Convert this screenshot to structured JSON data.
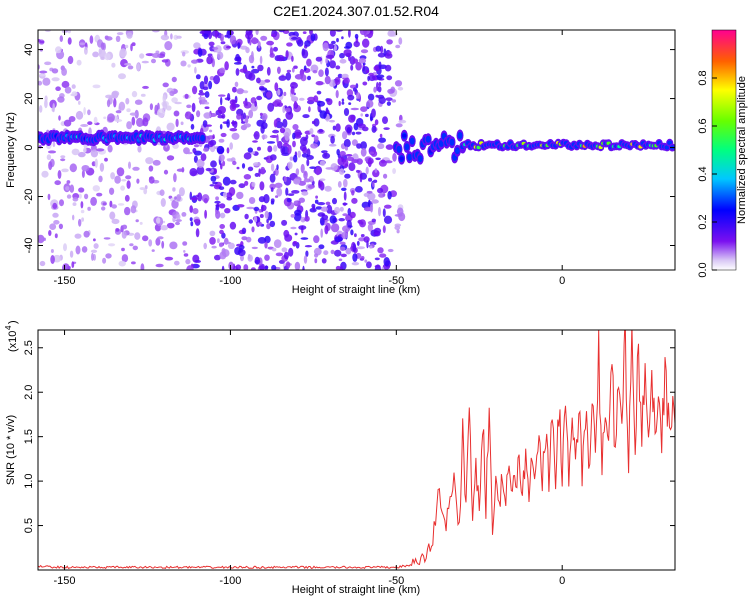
{
  "chart_data": [
    {
      "type": "heatmap",
      "title": "C2E1.2024.307.01.52.R04",
      "xlabel": "Height of straight line (km)",
      "ylabel": "Frequency (Hz)",
      "xlim": [
        -158,
        34
      ],
      "ylim": [
        -50,
        48
      ],
      "x_ticks": [
        -150,
        -100,
        -50,
        0
      ],
      "y_ticks": [
        40,
        20,
        0,
        -20,
        -40
      ],
      "colorbar": {
        "label": "Normalized spectral amplitude",
        "range": [
          0.0,
          1.0
        ],
        "ticks": [
          0.0,
          0.2,
          0.4,
          0.6,
          0.8
        ],
        "tick_labels": [
          "0.0",
          "0.2",
          "0.4",
          "0.6",
          "0.8"
        ]
      },
      "band": {
        "description_free": true,
        "segments": [
          {
            "x": [
              -158,
              -108
            ],
            "freq": 4,
            "peak": 0.45
          },
          {
            "x": [
              -50,
              -30
            ],
            "freq": 0,
            "peak": 0.35
          },
          {
            "x": [
              -30,
              34
            ],
            "freq": 1,
            "peak": 0.85
          }
        ]
      },
      "noise_region_x": [
        -158,
        -48
      ]
    },
    {
      "type": "line",
      "xlabel": "Height of straight line (km)",
      "ylabel": "SNR (10 * v/v)",
      "y_multiplier": "(x10",
      "y_multiplier_exp": "4",
      "xlim": [
        -158,
        34
      ],
      "ylim": [
        0.0,
        2.7
      ],
      "x_ticks": [
        -150,
        -100,
        -50,
        0
      ],
      "y_ticks": [
        0.5,
        1.0,
        1.5,
        2.0,
        2.5
      ],
      "y_tick_labels": [
        "0.5",
        "1.0",
        "1.5",
        "2.0",
        "2.5"
      ],
      "series": [
        {
          "color": "#e83030",
          "x": [
            -158,
            -150,
            -140,
            -120,
            -100,
            -80,
            -60,
            -50,
            -45,
            -41,
            -39,
            -37,
            -35,
            -33,
            -31,
            -30,
            -29,
            -28,
            -27,
            -26,
            -25,
            -24,
            -23,
            -22,
            -21,
            -20,
            -19,
            -18,
            -17,
            -16,
            -15,
            -14,
            -13,
            -12,
            -11,
            -10,
            -9,
            -8,
            -7,
            -6,
            -5,
            -4,
            -3,
            -2,
            -1,
            0,
            1,
            2,
            3,
            4,
            5,
            6,
            7,
            8,
            9,
            10,
            11,
            12,
            13,
            14,
            15,
            16,
            17,
            18,
            19,
            20,
            21,
            22,
            23,
            24,
            25,
            26,
            27,
            28,
            29,
            30,
            31,
            32,
            33,
            34
          ],
          "values": [
            0.04,
            0.03,
            0.03,
            0.03,
            0.03,
            0.03,
            0.03,
            0.03,
            0.06,
            0.15,
            0.35,
            0.9,
            0.5,
            1.05,
            0.45,
            1.5,
            0.8,
            1.85,
            0.5,
            1.3,
            0.6,
            1.75,
            0.7,
            1.9,
            0.5,
            0.9,
            0.65,
            1.1,
            0.85,
            1.2,
            0.9,
            1.05,
            1.25,
            0.95,
            1.3,
            0.9,
            1.4,
            1.0,
            1.55,
            1.0,
            1.45,
            1.05,
            1.7,
            0.95,
            1.9,
            1.05,
            1.75,
            1.0,
            1.85,
            1.1,
            1.95,
            1.05,
            1.8,
            1.1,
            2.0,
            1.15,
            2.4,
            1.1,
            1.95,
            1.3,
            2.45,
            1.2,
            2.3,
            1.45,
            2.65,
            1.3,
            2.45,
            1.2,
            2.6,
            1.35,
            2.55,
            1.3,
            2.3,
            1.4,
            2.25,
            1.45,
            2.3,
            1.65,
            1.9,
            1.65
          ]
        }
      ]
    }
  ]
}
